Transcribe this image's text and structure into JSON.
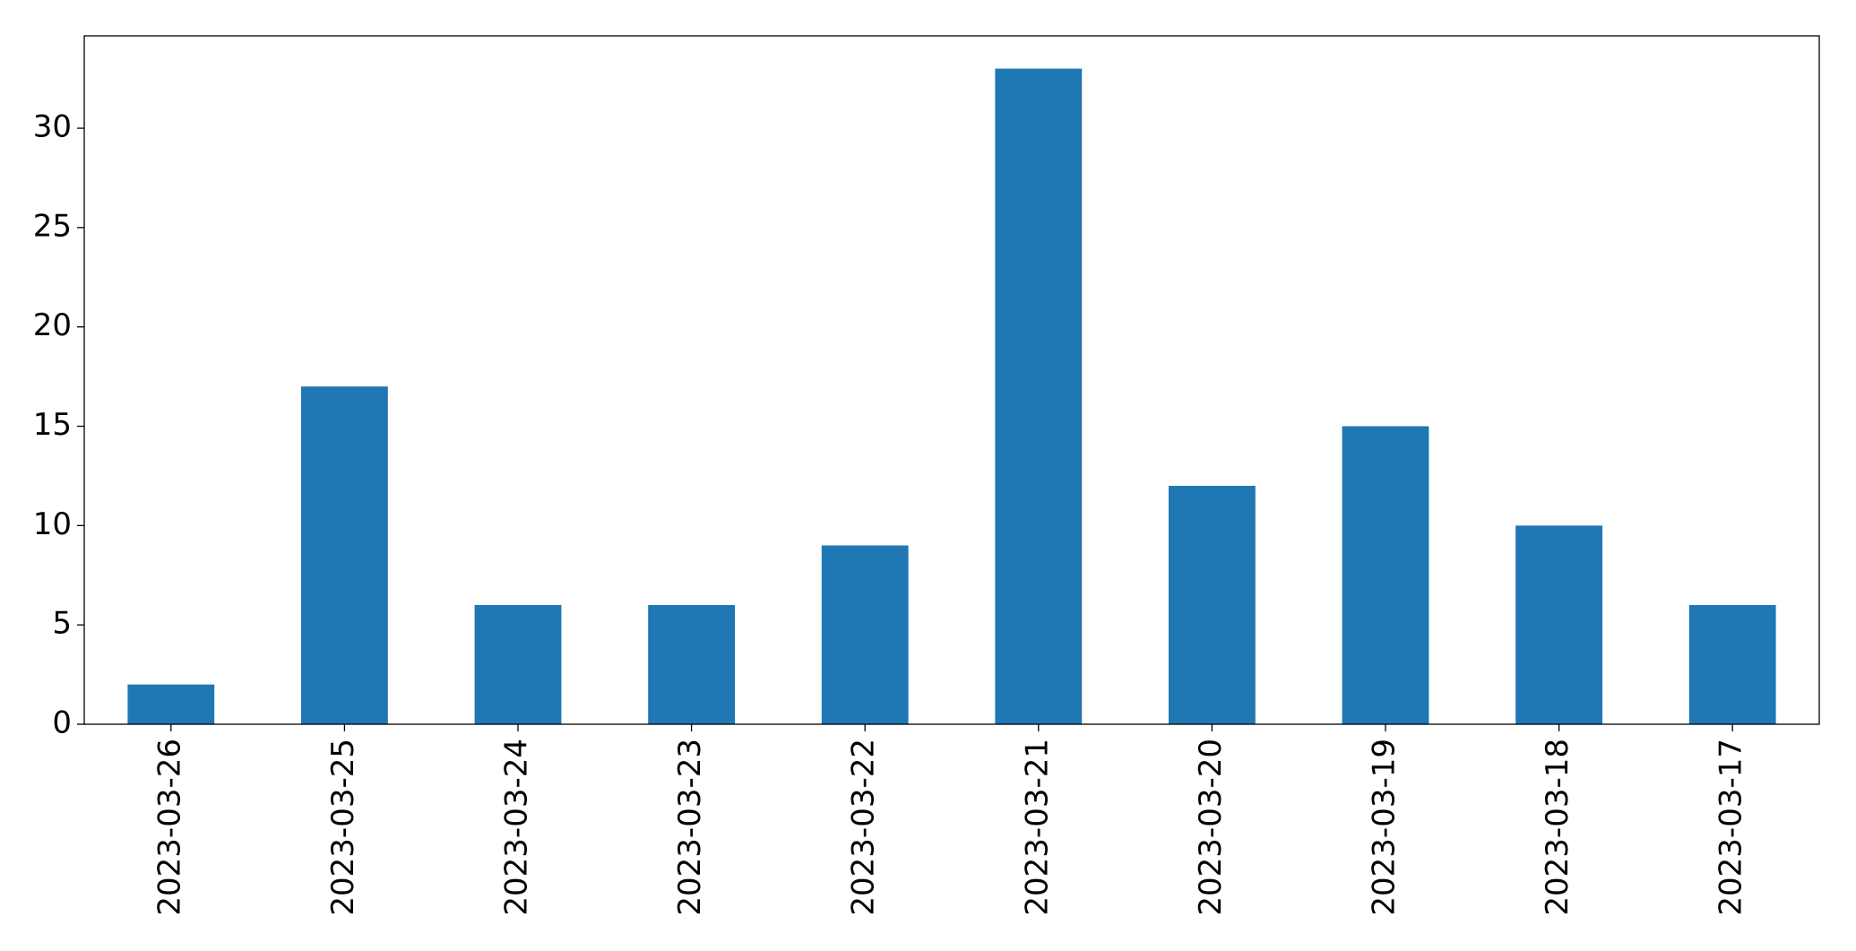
{
  "chart_data": {
    "type": "bar",
    "categories": [
      "2023-03-26",
      "2023-03-25",
      "2023-03-24",
      "2023-03-23",
      "2023-03-22",
      "2023-03-21",
      "2023-03-20",
      "2023-03-19",
      "2023-03-18",
      "2023-03-17"
    ],
    "values": [
      2,
      17,
      6,
      6,
      9,
      33,
      12,
      15,
      10,
      6
    ],
    "color": "#1f77b4",
    "ylim": [
      0,
      34.65
    ],
    "yticks": [
      0,
      5,
      10,
      15,
      20,
      25,
      30
    ],
    "grid": false
  }
}
